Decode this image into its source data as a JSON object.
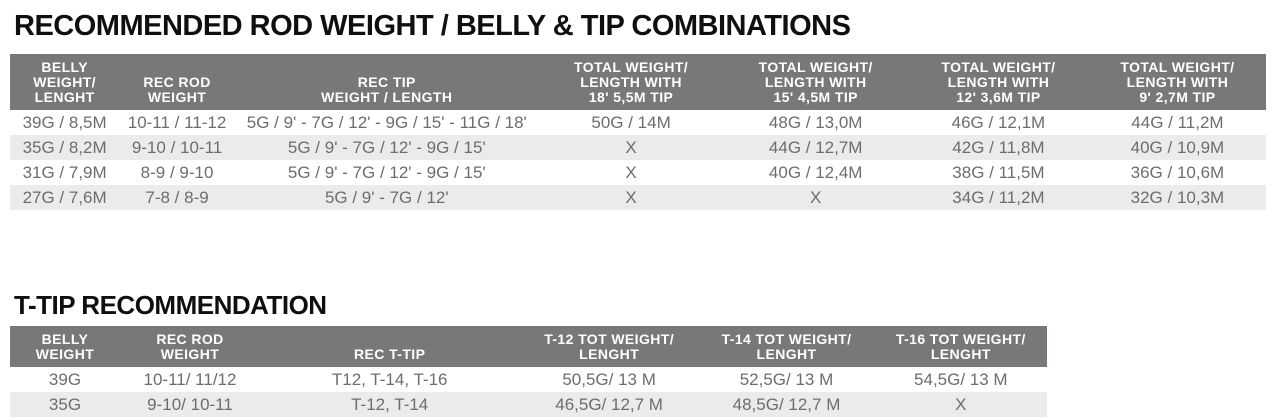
{
  "colors": {
    "header_bg": "#797877",
    "header_text": "#ffffff",
    "row_alt_bg": "#ebebeb",
    "row_bg": "#ffffff",
    "body_text": "#6d6d6d",
    "title_text": "#0f0f0f",
    "page_bg": "#ffffff"
  },
  "sections": [
    {
      "title": "RECOMMENDED ROD WEIGHT / BELLY & TIP COMBINATIONS",
      "table": {
        "headers": [
          [
            "BELLY",
            "WEIGHT/",
            "LENGHT"
          ],
          [
            "REC ROD",
            "WEIGHT"
          ],
          [
            "REC TIP",
            "WEIGHT / LENGTH"
          ],
          [
            "TOTAL WEIGHT/",
            "LENGTH WITH",
            "18'  5,5M TIP"
          ],
          [
            "TOTAL WEIGHT/",
            "LENGTH WITH",
            "15'  4,5M TIP"
          ],
          [
            "TOTAL WEIGHT/",
            "LENGTH WITH",
            "12'  3,6M TIP"
          ],
          [
            "TOTAL WEIGHT/",
            "LENGTH WITH",
            "9'  2,7M TIP"
          ]
        ],
        "rows": [
          [
            "39G / 8,5M",
            "10-11 / 11-12",
            "5G / 9' - 7G / 12' - 9G / 15' - 11G / 18'",
            "50G / 14M",
            "48G / 13,0M",
            "46G / 12,1M",
            "44G / 11,2M"
          ],
          [
            "35G / 8,2M",
            "9-10 / 10-11",
            "5G / 9' - 7G / 12' - 9G / 15'",
            "X",
            "44G / 12,7M",
            "42G / 11,8M",
            "40G / 10,9M"
          ],
          [
            "31G / 7,9M",
            "8-9 / 9-10",
            "5G / 9' - 7G / 12' - 9G / 15'",
            "X",
            "40G / 12,4M",
            "38G / 11,5M",
            "36G / 10,6M"
          ],
          [
            "27G / 7,6M",
            "7-8 / 8-9",
            "5G / 9' - 7G / 12'",
            "X",
            "X",
            "34G / 11,2M",
            "32G / 10,3M"
          ]
        ]
      }
    },
    {
      "title": "T-TIP RECOMMENDATION",
      "table": {
        "headers": [
          [
            "BELLY",
            "WEIGHT"
          ],
          [
            "REC ROD",
            "WEIGHT"
          ],
          [
            "REC T-TIP"
          ],
          [
            "T-12 TOT WEIGHT/",
            "LENGHT"
          ],
          [
            "T-14 TOT WEIGHT/",
            "LENGHT"
          ],
          [
            "T-16 TOT WEIGHT/",
            "LENGHT"
          ]
        ],
        "rows": [
          [
            "39G",
            "10-11/ 11/12",
            "T12, T-14, T-16",
            "50,5G/ 13 M",
            "52,5G/ 13 M",
            "54,5G/ 13 M"
          ],
          [
            "35G",
            "9-10/ 10-11",
            "T-12, T-14",
            "46,5G/ 12,7 M",
            "48,5G/ 12,7 M",
            "X"
          ]
        ]
      }
    }
  ]
}
